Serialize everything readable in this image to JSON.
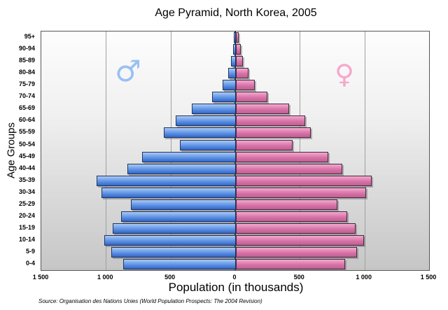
{
  "title": "Age Pyramid, North Korea, 2005",
  "source_note": "Source: Organisation des Nations Unies (World Population Prospects: The 2004 Revision)",
  "chart_data": {
    "type": "bar",
    "subtype": "population-pyramid",
    "title": "Age Pyramid, North Korea, 2005",
    "xlabel": "Population (in thousands)",
    "ylabel": "Age Groups",
    "grid": true,
    "legend_position": "none",
    "categories_top_to_bottom": [
      "95+",
      "90-94",
      "85-89",
      "80-84",
      "75-79",
      "70-74",
      "65-69",
      "60-64",
      "55-59",
      "50-54",
      "45-49",
      "40-44",
      "35-39",
      "30-34",
      "25-29",
      "20-24",
      "15-19",
      "10-14",
      "5-9",
      "0-4"
    ],
    "series": [
      {
        "name": "Male",
        "side": "left",
        "symbol": "♂",
        "symbol_color": "#99c0f2",
        "bar_color_light": "#a9c9f4",
        "bar_color_mid": "#5f93e4",
        "bar_color_dark": "#3166cb",
        "bar_border_color": "#22355e",
        "values_top_to_bottom": [
          3,
          10,
          25,
          50,
          93,
          172,
          330,
          455,
          545,
          420,
          715,
          830,
          1065,
          1030,
          800,
          880,
          945,
          1010,
          955,
          860
        ]
      },
      {
        "name": "Female",
        "side": "right",
        "symbol": "♀",
        "symbol_color": "#f7a6ca",
        "bar_color_light": "#f2aacf",
        "bar_color_mid": "#d873a6",
        "bar_color_dark": "#c05e92",
        "bar_border_color": "#4a2742",
        "values_top_to_bottom": [
          8,
          28,
          45,
          85,
          137,
          232,
          400,
          525,
          570,
          430,
          705,
          810,
          1040,
          995,
          775,
          850,
          915,
          980,
          925,
          835
        ]
      }
    ],
    "x_axis": {
      "unit": "thousands",
      "max_abs": 1500,
      "ticks": [
        -1500,
        -1000,
        -500,
        0,
        500,
        1000,
        1500
      ],
      "tick_labels": [
        "1 500",
        "1 000",
        "500",
        "0",
        "500",
        "1 000",
        "1 500"
      ],
      "gridlines_at_abs": [
        500,
        1000
      ],
      "center_line_color": "#121212"
    }
  }
}
